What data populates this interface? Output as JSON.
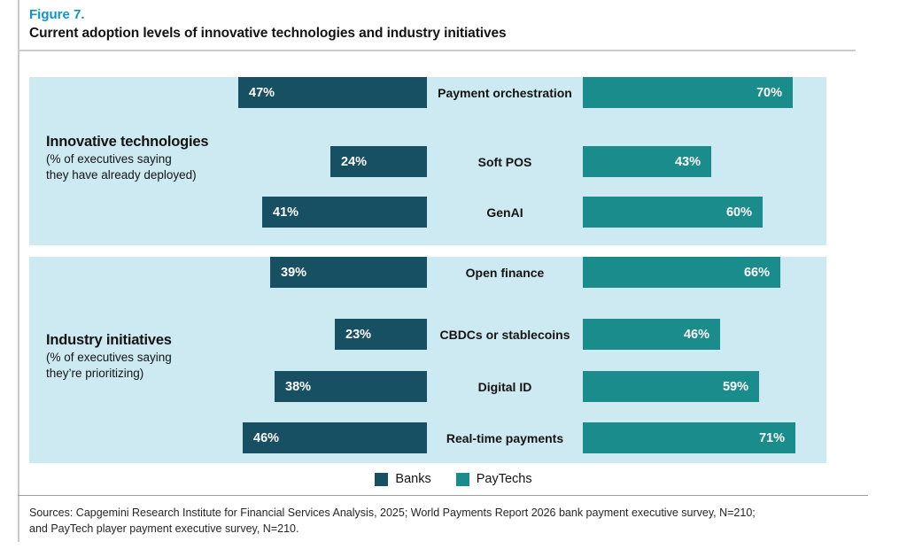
{
  "figure": {
    "label": "Figure 7.",
    "title": "Current adoption levels of innovative technologies and industry initiatives"
  },
  "colors": {
    "banks": "#174f63",
    "paytechs": "#1a8c8c",
    "panel_bg": "#cde9f2",
    "figure_label_blue": "#0a93d6"
  },
  "panels": [
    {
      "group_title": "Innovative technologies",
      "group_subtitle_line1": "(% of executives saying",
      "group_subtitle_line2": "they have already deployed)",
      "rows": [
        {
          "category": "Soft POS",
          "bank": 24,
          "bank_label": "24%",
          "paytech": 43,
          "paytech_label": "43%"
        },
        {
          "category": "GenAI",
          "bank": 41,
          "bank_label": "41%",
          "paytech": 60,
          "paytech_label": "60%"
        },
        {
          "category": "Payment orchestration",
          "bank": 47,
          "bank_label": "47%",
          "paytech": 70,
          "paytech_label": "70%"
        }
      ]
    },
    {
      "group_title": "Industry initiatives",
      "group_subtitle_line1": "(% of executives saying",
      "group_subtitle_line2": "they’re prioritizing)",
      "rows": [
        {
          "category": "CBDCs or stablecoins",
          "bank": 23,
          "bank_label": "23%",
          "paytech": 46,
          "paytech_label": "46%"
        },
        {
          "category": "Digital ID",
          "bank": 38,
          "bank_label": "38%",
          "paytech": 59,
          "paytech_label": "59%"
        },
        {
          "category": "Real-time payments",
          "bank": 46,
          "bank_label": "46%",
          "paytech": 71,
          "paytech_label": "71%"
        },
        {
          "category": "Open finance",
          "bank": 39,
          "bank_label": "39%",
          "paytech": 66,
          "paytech_label": "66%"
        }
      ]
    }
  ],
  "legend": {
    "items": [
      {
        "label": "Banks",
        "color": "#174f63"
      },
      {
        "label": "PayTechs",
        "color": "#1a8c8c"
      }
    ]
  },
  "sources": {
    "line1": "Sources: Capgemini Research Institute for Financial Services Analysis, 2025; World Payments Report 2026 bank payment executive survey, N=210;",
    "line2": "and PayTech player payment executive survey, N=210."
  },
  "chart_data": [
    {
      "type": "bar",
      "orientation": "horizontal",
      "title": "Innovative technologies (% of executives saying they have already deployed)",
      "categories": [
        "Soft POS",
        "GenAI",
        "Payment orchestration"
      ],
      "series": [
        {
          "name": "Banks",
          "values": [
            24,
            41,
            47
          ]
        },
        {
          "name": "PayTechs",
          "values": [
            43,
            60,
            70
          ]
        }
      ],
      "unit": "%",
      "xlim": [
        0,
        100
      ],
      "grid": false,
      "legend_position": "bottom",
      "layout": "tornado-paired"
    },
    {
      "type": "bar",
      "orientation": "horizontal",
      "title": "Industry initiatives (% of executives saying they’re prioritizing)",
      "categories": [
        "CBDCs or stablecoins",
        "Digital ID",
        "Real-time payments",
        "Open finance"
      ],
      "series": [
        {
          "name": "Banks",
          "values": [
            23,
            38,
            46,
            39
          ]
        },
        {
          "name": "PayTechs",
          "values": [
            46,
            59,
            71,
            66
          ]
        }
      ],
      "unit": "%",
      "xlim": [
        0,
        100
      ],
      "grid": false,
      "legend_position": "bottom",
      "layout": "tornado-paired"
    }
  ]
}
